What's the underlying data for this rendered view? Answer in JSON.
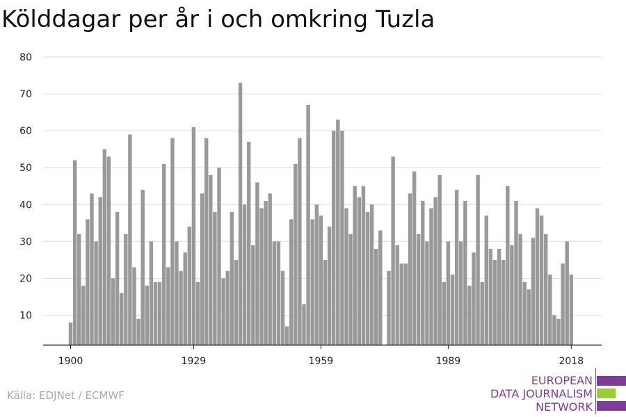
{
  "title": "Kölddagar per år i och omkring Tuzla",
  "source": "Källa: EDJNet / ECMWF",
  "logo": {
    "line1": "EUROPEAN",
    "line2": "DATA JOURNALISM",
    "line3": "NETWORK",
    "colors": [
      "#7d3c98",
      "#9acd32",
      "#7d3c98"
    ]
  },
  "colors": {
    "bar": "#999999",
    "grid": "#dddddd",
    "axis": "#222222"
  },
  "chart_data": {
    "type": "bar",
    "title": "Kölddagar per år i och omkring Tuzla",
    "xlabel": "",
    "ylabel": "",
    "x_ticks": [
      "1900",
      "1929",
      "1959",
      "1989",
      "2018"
    ],
    "y_ticks": [
      10,
      20,
      30,
      40,
      50,
      60,
      70,
      80
    ],
    "ylim": [
      2,
      80
    ],
    "grid": true,
    "categories": [
      1900,
      1901,
      1902,
      1903,
      1904,
      1905,
      1906,
      1907,
      1908,
      1909,
      1910,
      1911,
      1912,
      1913,
      1914,
      1915,
      1916,
      1917,
      1918,
      1919,
      1920,
      1921,
      1922,
      1923,
      1924,
      1925,
      1926,
      1927,
      1928,
      1929,
      1930,
      1931,
      1932,
      1933,
      1934,
      1935,
      1936,
      1937,
      1938,
      1939,
      1940,
      1941,
      1942,
      1943,
      1944,
      1945,
      1946,
      1947,
      1948,
      1949,
      1950,
      1951,
      1952,
      1953,
      1954,
      1955,
      1956,
      1957,
      1958,
      1959,
      1960,
      1961,
      1962,
      1963,
      1964,
      1965,
      1966,
      1967,
      1968,
      1969,
      1970,
      1971,
      1972,
      1973,
      1974,
      1975,
      1976,
      1977,
      1978,
      1979,
      1980,
      1981,
      1982,
      1983,
      1984,
      1985,
      1986,
      1987,
      1988,
      1989,
      1990,
      1991,
      1992,
      1993,
      1994,
      1995,
      1996,
      1997,
      1998,
      1999,
      2000,
      2001,
      2002,
      2003,
      2004,
      2005,
      2006,
      2007,
      2008,
      2009,
      2010,
      2011,
      2012,
      2013,
      2014,
      2015,
      2016,
      2017,
      2018
    ],
    "values": [
      8,
      52,
      32,
      18,
      36,
      43,
      30,
      42,
      55,
      53,
      20,
      38,
      16,
      32,
      59,
      23,
      9,
      44,
      18,
      30,
      19,
      19,
      51,
      23,
      58,
      30,
      22,
      27,
      34,
      61,
      19,
      43,
      58,
      48,
      38,
      50,
      20,
      22,
      38,
      25,
      73,
      40,
      57,
      29,
      46,
      39,
      41,
      43,
      30,
      30,
      22,
      7,
      36,
      51,
      58,
      13,
      67,
      36,
      40,
      37,
      25,
      34,
      60,
      63,
      60,
      39,
      32,
      45,
      42,
      45,
      38,
      40,
      28,
      33,
      0,
      22,
      53,
      29,
      24,
      24,
      43,
      49,
      32,
      41,
      30,
      39,
      42,
      48,
      19,
      30,
      21,
      44,
      30,
      41,
      18,
      27,
      48,
      19,
      37,
      28,
      25,
      28,
      25,
      45,
      29,
      41,
      32,
      19,
      17,
      31,
      39,
      37,
      32,
      21,
      10,
      9,
      24,
      30,
      21
    ]
  }
}
